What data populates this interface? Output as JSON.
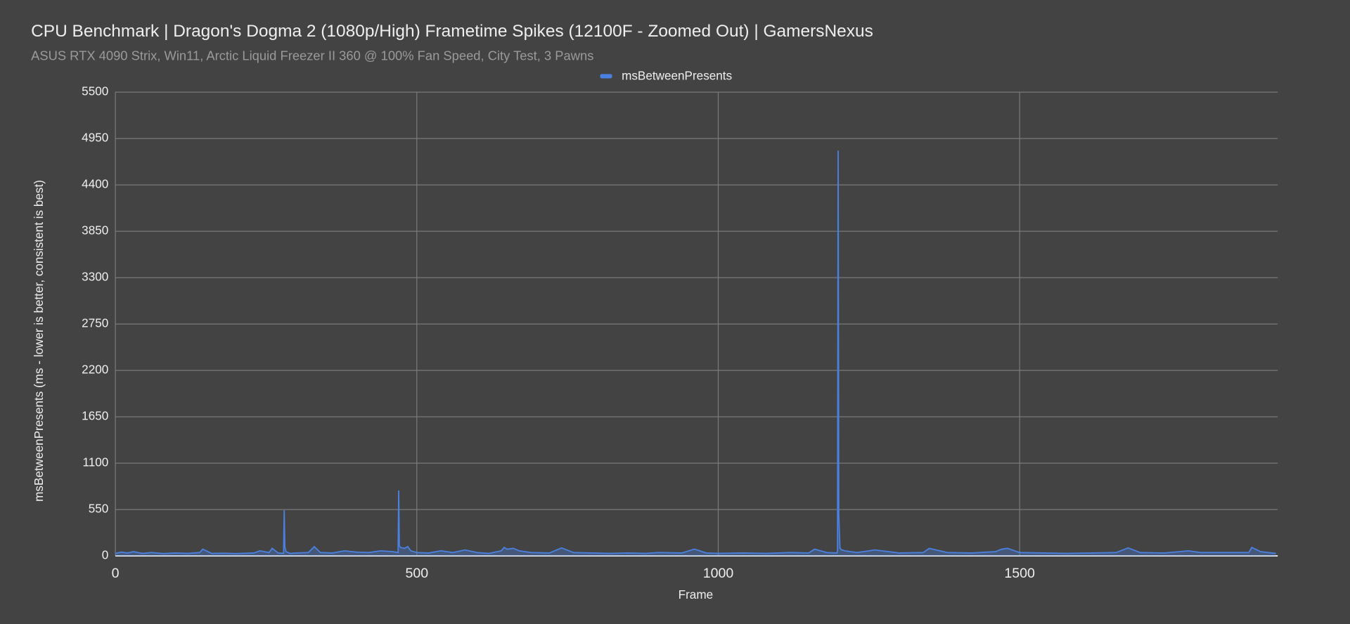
{
  "chart_data": {
    "type": "area",
    "title": "CPU Benchmark | Dragon's Dogma 2 (1080p/High) Frametime Spikes (12100F - Zoomed Out) | GamersNexus",
    "subtitle": "ASUS RTX 4090 Strix, Win11, Arctic Liquid Freezer II 360 @ 100% Fan Speed, City Test, 3 Pawns",
    "x_label": "Frame",
    "y_label": "msBetweenPresents (ms - lower is better, consistent is best)",
    "x": [
      0,
      10,
      20,
      30,
      45,
      60,
      80,
      100,
      120,
      140,
      145,
      160,
      180,
      200,
      230,
      240,
      255,
      260,
      270,
      279,
      280,
      281,
      283,
      290,
      300,
      320,
      330,
      340,
      360,
      380,
      400,
      420,
      440,
      460,
      469,
      470,
      471,
      473,
      480,
      485,
      490,
      500,
      520,
      540,
      560,
      580,
      600,
      620,
      640,
      645,
      650,
      660,
      670,
      690,
      720,
      740,
      760,
      790,
      820,
      850,
      880,
      900,
      940,
      960,
      965,
      980,
      1000,
      1040,
      1080,
      1120,
      1150,
      1160,
      1180,
      1197,
      1198,
      1199,
      1200,
      1202,
      1205,
      1210,
      1230,
      1260,
      1300,
      1340,
      1350,
      1380,
      1420,
      1460,
      1470,
      1480,
      1500,
      1540,
      1580,
      1620,
      1660,
      1680,
      1700,
      1740,
      1780,
      1800,
      1840,
      1880,
      1885,
      1900,
      1925
    ],
    "series": [
      {
        "name": "msBetweenPresents",
        "color": "#4a80e0",
        "values": [
          30,
          45,
          35,
          50,
          30,
          40,
          28,
          35,
          30,
          40,
          80,
          30,
          32,
          28,
          35,
          60,
          40,
          90,
          35,
          30,
          541,
          110,
          50,
          30,
          35,
          40,
          110,
          40,
          35,
          60,
          45,
          40,
          60,
          50,
          40,
          775,
          120,
          100,
          90,
          110,
          60,
          40,
          35,
          60,
          40,
          70,
          40,
          30,
          60,
          100,
          80,
          90,
          60,
          40,
          35,
          95,
          40,
          35,
          30,
          35,
          30,
          40,
          35,
          80,
          70,
          35,
          30,
          35,
          30,
          40,
          35,
          80,
          40,
          35,
          60,
          4806,
          500,
          90,
          70,
          60,
          40,
          70,
          35,
          40,
          90,
          40,
          35,
          50,
          80,
          90,
          40,
          35,
          30,
          35,
          40,
          95,
          40,
          35,
          60,
          40,
          40,
          40,
          100,
          50,
          30
        ]
      }
    ],
    "xlim": [
      0,
      1928
    ],
    "xticks": [
      0,
      500,
      1000,
      1500
    ],
    "ylim": [
      0,
      5500
    ],
    "yticks": [
      0,
      550,
      1100,
      1650,
      2200,
      2750,
      3300,
      3850,
      4400,
      4950,
      5500
    ],
    "grid": true,
    "legend": "top"
  }
}
